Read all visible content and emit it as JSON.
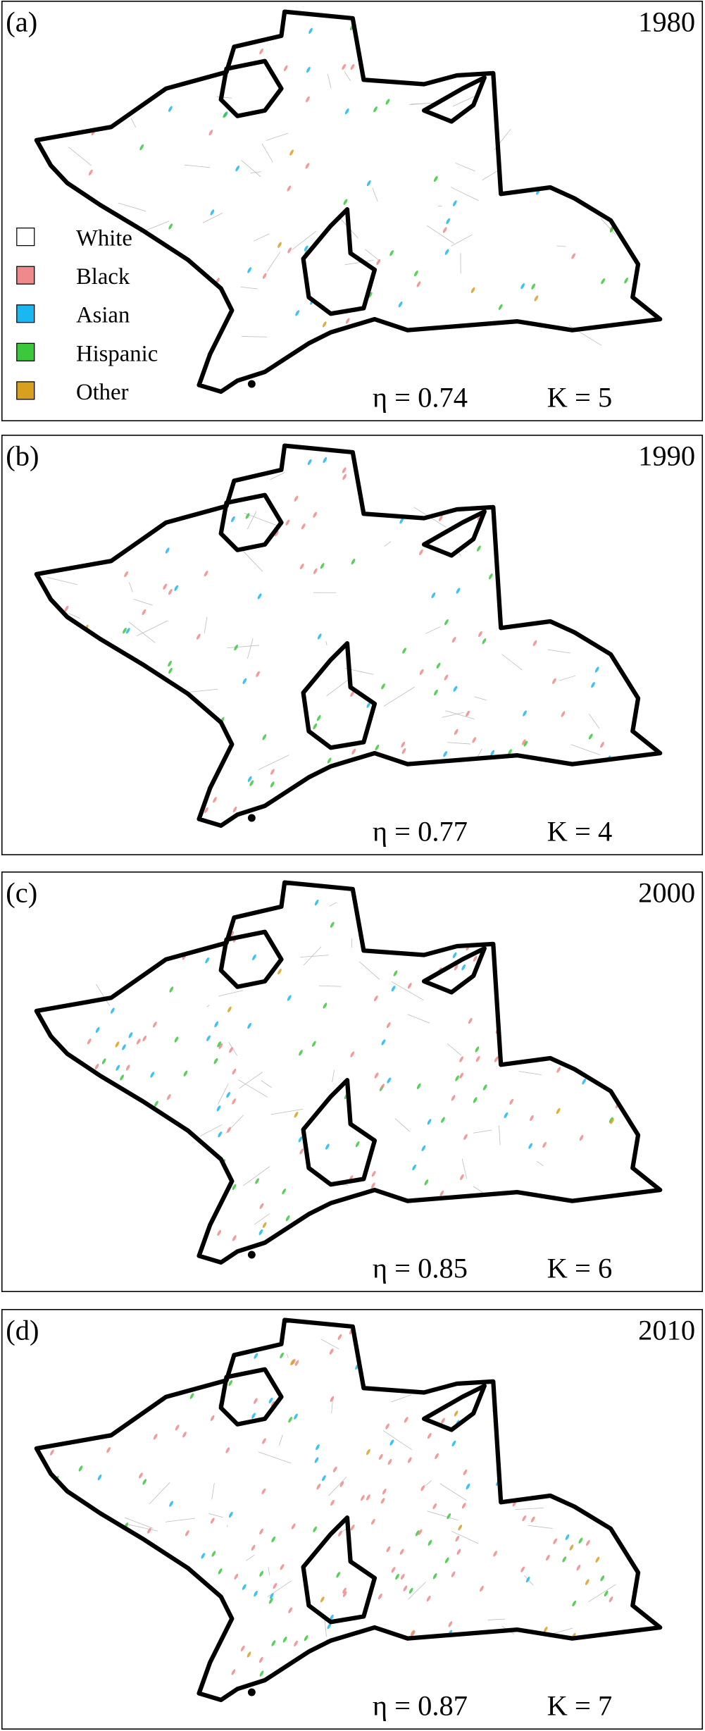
{
  "legend": [
    {
      "name": "White",
      "color": "#ffffff"
    },
    {
      "name": "Black",
      "color": "#f08a8a"
    },
    {
      "name": "Asian",
      "color": "#1ab8f0"
    },
    {
      "name": "Hispanic",
      "color": "#3cc83c"
    },
    {
      "name": "Other",
      "color": "#d9a020"
    }
  ],
  "panels": [
    {
      "label": "(a)",
      "year": "1980",
      "eta": "η = 0.74",
      "k": "K = 5"
    },
    {
      "label": "(b)",
      "year": "1990",
      "eta": "η = 0.77",
      "k": "K = 4"
    },
    {
      "label": "(c)",
      "year": "2000",
      "eta": "η = 0.85",
      "k": "K = 6"
    },
    {
      "label": "(d)",
      "year": "2010",
      "eta": "η = 0.87",
      "k": "K = 7"
    }
  ]
}
